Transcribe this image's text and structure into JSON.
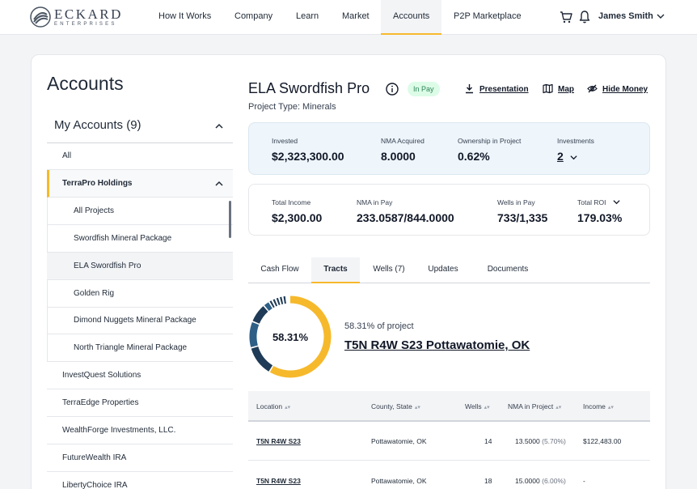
{
  "brand": {
    "name": "ECKARD",
    "sub": "ENTERPRISES"
  },
  "nav": {
    "items": [
      "How It Works",
      "Company",
      "Learn",
      "Market",
      "Accounts",
      "P2P Marketplace"
    ],
    "active": "Accounts",
    "user": "James Smith"
  },
  "sidebar": {
    "title": "Accounts",
    "my_accounts": "My Accounts (9)",
    "all": "All",
    "group": "TerraPro Holdings",
    "projects": [
      "All Projects",
      "Swordfish Mineral Package",
      "ELA Swordfish Pro",
      "Golden Rig",
      "Dimond Nuggets Mineral Package",
      "North Triangle Mineral Package"
    ],
    "selected_project": "ELA Swordfish Pro",
    "accounts": [
      "InvestQuest Solutions",
      "TerraEdge Properties",
      "WealthForge Investments, LLC.",
      "FutureWealth IRA",
      "LibertyChoice IRA"
    ]
  },
  "project": {
    "title": "ELA Swordfish Pro",
    "status": "In Pay",
    "type": "Project Type: Minerals",
    "actions": {
      "presentation": "Presentation",
      "map": "Map",
      "hide_money": "Hide Money"
    }
  },
  "stats1": {
    "invested_label": "Invested",
    "invested": "$2,323,300.00",
    "nma_acquired_label": "NMA Acquired",
    "nma_acquired": "8.0000",
    "ownership_label": "Ownership in Project",
    "ownership": "0.62%",
    "investments_label": "Investments",
    "investments": "2"
  },
  "stats2": {
    "total_income_label": "Total Income",
    "total_income": "$2,300.00",
    "nma_in_pay_label": "NMA in Pay",
    "nma_in_pay": "233.0587/844.0000",
    "wells_in_pay_label": "Wells in Pay",
    "wells_in_pay": "733/1,335",
    "total_roi_label": "Total ROI",
    "total_roi": "179.03%"
  },
  "tabs": [
    "Cash Flow",
    "Tracts",
    "Wells (7)",
    "Updates",
    "Documents"
  ],
  "active_tab": "Tracts",
  "tract": {
    "percent": 58.31,
    "percent_label": "58.31%",
    "subtitle": "58.31% of project",
    "name": "T5N R4W S23 Pottawatomie, OK"
  },
  "colors": {
    "accent": "#f6b92b",
    "donut_dark": "#1f3b57",
    "donut_mid": "#2e5f86"
  },
  "table": {
    "headers": [
      "Location",
      "County, State",
      "Wells",
      "NMA in Project",
      "Income"
    ],
    "rows": [
      {
        "location": "T5N R4W S23",
        "county": "Pottawatomie, OK",
        "wells": "14",
        "nma": "13.5000",
        "nma_pct": "(5.70%)",
        "income": "$122,483.00"
      },
      {
        "location": "T5N R4W S23",
        "county": "Pottawatomie, OK",
        "wells": "18",
        "nma": "15.0000",
        "nma_pct": "(6.00%)",
        "income": "-"
      }
    ]
  }
}
